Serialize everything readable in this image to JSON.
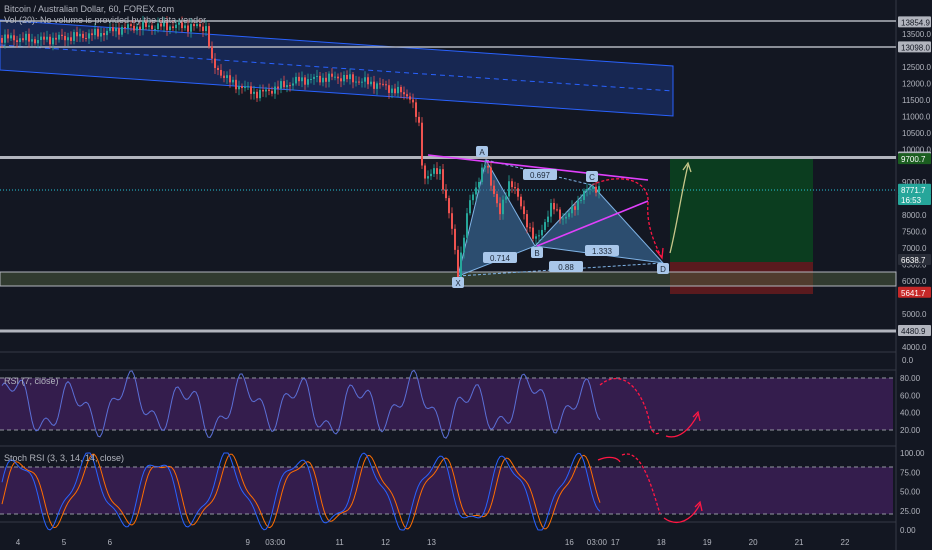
{
  "header": {
    "symbol_line": "Bitcoin / Australian Dollar, 60, FOREX.com",
    "volume_line": "Vol (20): No volume is provided by the data vendor"
  },
  "price_axis": {
    "ticks": [
      "13500.0",
      "12500.0",
      "12000.0",
      "11500.0",
      "11000.0",
      "10500.0",
      "10000.0",
      "9000.0",
      "8500.0",
      "8000.0",
      "7500.0",
      "7000.0",
      "6500.0",
      "6000.0",
      "5000.0",
      "4500.0",
      "4000.0",
      "0.0"
    ],
    "labels": [
      {
        "text": "13854.9",
        "style": "line"
      },
      {
        "text": "13098.0",
        "style": "line"
      },
      {
        "text": "9751.6",
        "style": "line"
      },
      {
        "text": "9700.7",
        "style": "green"
      },
      {
        "text": "8771.7",
        "style": "cyan"
      },
      {
        "text": "16:53",
        "style": "cyan"
      },
      {
        "text": "6638.7",
        "style": "dark"
      },
      {
        "text": "5641.7",
        "style": "red"
      },
      {
        "text": "4480.9",
        "style": "line"
      }
    ]
  },
  "time_axis": {
    "ticks": [
      {
        "label": "4",
        "day": 4
      },
      {
        "label": "5",
        "day": 5
      },
      {
        "label": "6",
        "day": 6
      },
      {
        "label": "9",
        "day": 9
      },
      {
        "label": "03:00",
        "day": 9.6
      },
      {
        "label": "11",
        "day": 11
      },
      {
        "label": "12",
        "day": 12
      },
      {
        "label": "13",
        "day": 13
      },
      {
        "label": "16",
        "day": 16
      },
      {
        "label": "03:00",
        "day": 16.6
      },
      {
        "label": "17",
        "day": 17
      },
      {
        "label": "18",
        "day": 18
      },
      {
        "label": "19",
        "day": 19
      },
      {
        "label": "20",
        "day": 20
      },
      {
        "label": "21",
        "day": 21
      },
      {
        "label": "22",
        "day": 22
      }
    ]
  },
  "harmonic_pattern": {
    "points": [
      "X",
      "A",
      "B",
      "C",
      "D"
    ],
    "ratios": [
      "0.697",
      "0.714",
      "1.333",
      "0.88"
    ]
  },
  "rsi": {
    "title": "RSI (7, close)",
    "ticks": [
      "80.00",
      "60.00",
      "40.00",
      "20.00"
    ]
  },
  "stoch": {
    "title": "Stoch RSI (3, 3, 14, 14, close)",
    "ticks": [
      "100.00",
      "75.00",
      "50.00",
      "25.00",
      "0.00"
    ]
  },
  "colors": {
    "background": "#131722",
    "channel": "#2962ff",
    "pattern_fill": "#3a6a9a",
    "forecast_arrow": "#ff1744",
    "target_arrow": "#c7c78a",
    "long_profit": "#0b3d1f",
    "long_stop": "#5a1a1e",
    "rsi_line": "#5b6fd6",
    "stoch_k": "#2962ff",
    "stoch_d": "#ff6d00",
    "oscillator_band": "#3b1f55"
  }
}
